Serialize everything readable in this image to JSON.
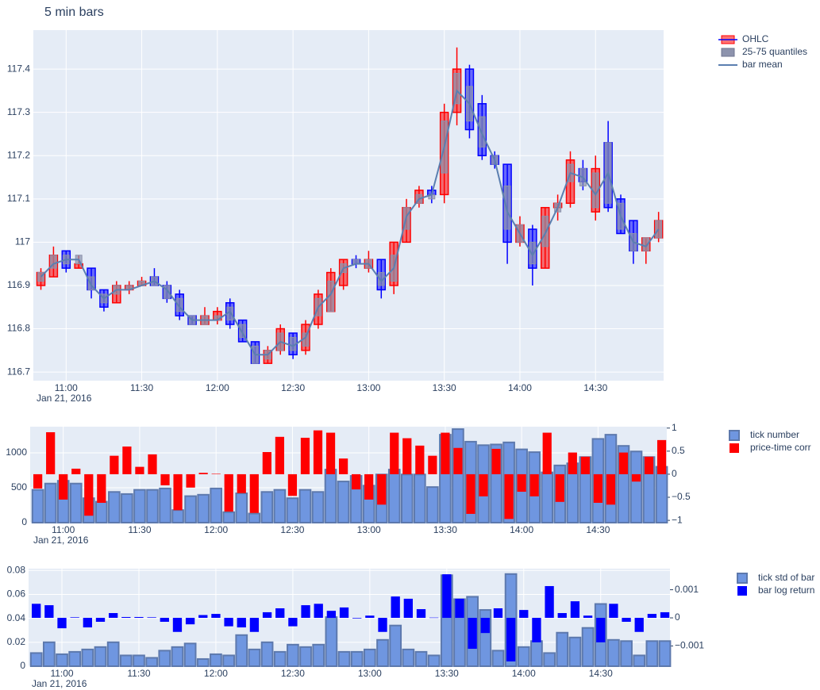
{
  "chart_data": [
    {
      "type": "candlestick",
      "title": "5 min bars",
      "x": [
        "10:50",
        "10:55",
        "11:00",
        "11:05",
        "11:10",
        "11:15",
        "11:20",
        "11:25",
        "11:30",
        "11:35",
        "11:40",
        "11:45",
        "11:50",
        "11:55",
        "12:00",
        "12:05",
        "12:10",
        "12:15",
        "12:20",
        "12:25",
        "12:30",
        "12:35",
        "12:40",
        "12:45",
        "12:50",
        "12:55",
        "13:00",
        "13:05",
        "13:10",
        "13:15",
        "13:20",
        "13:25",
        "13:30",
        "13:35",
        "13:40",
        "13:45",
        "13:50",
        "13:55",
        "14:00",
        "14:05",
        "14:10",
        "14:15",
        "14:20",
        "14:25",
        "14:30",
        "14:35",
        "14:40",
        "14:45",
        "14:50",
        "14:55"
      ],
      "x_date": "Jan 21, 2016",
      "xlim": [
        "10:47",
        "14:57"
      ],
      "xticks": [
        "11:00",
        "11:30",
        "12:00",
        "12:30",
        "13:00",
        "13:30",
        "14:00",
        "14:30"
      ],
      "ylim": [
        116.68,
        117.49
      ],
      "yticks": [
        116.7,
        116.8,
        116.9,
        117,
        117.1,
        117.2,
        117.3,
        117.4
      ],
      "grid": true,
      "series": [
        {
          "name": "OHLC",
          "increasing_color": "#ff0000",
          "decreasing_color": "#0000ff",
          "open": [
            116.9,
            116.92,
            116.98,
            116.94,
            116.94,
            116.89,
            116.86,
            116.89,
            116.9,
            116.92,
            116.9,
            116.88,
            116.83,
            116.81,
            116.82,
            116.86,
            116.82,
            116.77,
            116.72,
            116.75,
            116.79,
            116.75,
            116.81,
            116.84,
            116.9,
            116.96,
            116.94,
            116.96,
            116.9,
            117.0,
            117.09,
            117.12,
            117.11,
            117.3,
            117.4,
            117.32,
            117.2,
            117.18,
            117.0,
            117.03,
            116.94,
            117.08,
            117.09,
            117.17,
            117.07,
            117.23,
            117.1,
            117.05,
            116.98,
            117.01
          ],
          "high": [
            116.94,
            116.99,
            116.98,
            116.97,
            116.94,
            116.89,
            116.91,
            116.91,
            116.92,
            116.94,
            116.91,
            116.89,
            116.83,
            116.85,
            116.85,
            116.87,
            116.82,
            116.77,
            116.76,
            116.81,
            116.79,
            116.82,
            116.89,
            116.94,
            116.96,
            116.97,
            116.98,
            116.96,
            117.0,
            117.1,
            117.13,
            117.13,
            117.32,
            117.45,
            117.41,
            117.34,
            117.21,
            117.18,
            117.06,
            117.04,
            117.08,
            117.11,
            117.21,
            117.19,
            117.2,
            117.28,
            117.11,
            117.05,
            117.01,
            117.07
          ],
          "low": [
            116.89,
            116.92,
            116.93,
            116.94,
            116.87,
            116.84,
            116.86,
            116.88,
            116.9,
            116.9,
            116.86,
            116.82,
            116.81,
            116.81,
            116.81,
            116.8,
            116.77,
            116.72,
            116.72,
            116.74,
            116.73,
            116.74,
            116.8,
            116.84,
            116.89,
            116.94,
            116.93,
            116.87,
            116.88,
            117.0,
            117.08,
            117.09,
            117.09,
            117.27,
            117.24,
            117.19,
            117.17,
            116.95,
            116.99,
            116.9,
            116.94,
            117.05,
            117.08,
            117.12,
            117.05,
            117.07,
            117.02,
            116.95,
            116.95,
            117.0
          ],
          "close": [
            116.93,
            116.97,
            116.94,
            116.95,
            116.89,
            116.85,
            116.9,
            116.9,
            116.91,
            116.9,
            116.87,
            116.83,
            116.81,
            116.83,
            116.84,
            116.81,
            116.77,
            116.72,
            116.75,
            116.8,
            116.74,
            116.81,
            116.88,
            116.93,
            116.96,
            116.95,
            116.96,
            116.89,
            117.0,
            117.08,
            117.12,
            117.11,
            117.3,
            117.4,
            117.26,
            117.2,
            117.18,
            117.0,
            117.04,
            116.94,
            117.08,
            117.09,
            117.19,
            117.14,
            117.17,
            117.08,
            117.02,
            116.98,
            117.01,
            117.05
          ]
        },
        {
          "name": "25-75 quantiles",
          "color": "#8d93ad",
          "low": [
            116.91,
            116.94,
            116.95,
            116.95,
            116.89,
            116.86,
            116.88,
            116.89,
            116.9,
            116.9,
            116.87,
            116.84,
            116.81,
            116.81,
            116.82,
            116.82,
            116.78,
            116.72,
            116.73,
            116.75,
            116.75,
            116.76,
            116.83,
            116.84,
            116.93,
            116.95,
            116.94,
            116.9,
            116.91,
            117.03,
            117.09,
            117.1,
            117.16,
            117.32,
            117.28,
            117.22,
            117.18,
            117.03,
            117.0,
            116.95,
            116.99,
            117.07,
            117.14,
            117.13,
            117.08,
            117.09,
            117.03,
            116.98,
            116.98,
            117.01
          ],
          "high": [
            116.93,
            116.97,
            116.97,
            116.97,
            116.92,
            116.88,
            116.9,
            116.9,
            116.91,
            116.92,
            116.9,
            116.87,
            116.83,
            116.83,
            116.83,
            116.85,
            116.81,
            116.76,
            116.75,
            116.79,
            116.78,
            116.79,
            116.87,
            116.91,
            116.95,
            116.96,
            116.96,
            116.93,
            116.97,
            117.08,
            117.11,
            117.11,
            117.28,
            117.39,
            117.36,
            117.29,
            117.2,
            117.13,
            117.04,
            117.0,
            117.06,
            117.09,
            117.18,
            117.17,
            117.16,
            117.23,
            117.09,
            117.02,
            117.01,
            117.05
          ]
        },
        {
          "name": "bar mean",
          "color": "#5b7fb0",
          "values": [
            116.92,
            116.95,
            116.96,
            116.96,
            116.9,
            116.87,
            116.89,
            116.89,
            116.9,
            116.91,
            116.89,
            116.85,
            116.82,
            116.82,
            116.82,
            116.84,
            116.79,
            116.74,
            116.74,
            116.77,
            116.76,
            116.78,
            116.85,
            116.88,
            116.94,
            116.95,
            116.95,
            116.91,
            116.94,
            117.06,
            117.1,
            117.11,
            117.22,
            117.35,
            117.32,
            117.25,
            117.19,
            117.07,
            117.02,
            116.97,
            117.02,
            117.08,
            117.16,
            117.15,
            117.11,
            117.16,
            117.06,
            117.0,
            116.99,
            117.03
          ]
        }
      ]
    },
    {
      "type": "bar",
      "x": [
        "10:50",
        "10:55",
        "11:00",
        "11:05",
        "11:10",
        "11:15",
        "11:20",
        "11:25",
        "11:30",
        "11:35",
        "11:40",
        "11:45",
        "11:50",
        "11:55",
        "12:00",
        "12:05",
        "12:10",
        "12:15",
        "12:20",
        "12:25",
        "12:30",
        "12:35",
        "12:40",
        "12:45",
        "12:50",
        "12:55",
        "13:00",
        "13:05",
        "13:10",
        "13:15",
        "13:20",
        "13:25",
        "13:30",
        "13:35",
        "13:40",
        "13:45",
        "13:50",
        "13:55",
        "14:00",
        "14:05",
        "14:10",
        "14:15",
        "14:20",
        "14:25",
        "14:30",
        "14:35",
        "14:40",
        "14:45",
        "14:50",
        "14:55"
      ],
      "x_date": "Jan 21, 2016",
      "xlim": [
        "10:47",
        "14:57"
      ],
      "xticks": [
        "11:00",
        "11:30",
        "12:00",
        "12:30",
        "13:00",
        "13:30",
        "14:00",
        "14:30"
      ],
      "ylim": [
        0,
        1375
      ],
      "yticks": [
        0,
        500,
        1000
      ],
      "y2lim": [
        -1.05,
        1.03
      ],
      "y2ticks": [
        {
          "value": -1,
          "label": "−1"
        },
        {
          "value": -0.5,
          "label": "−0.5"
        },
        0,
        0.5,
        1
      ],
      "grid": true,
      "series": [
        {
          "name": "tick number",
          "color": "#6f96e0",
          "values": [
            470,
            560,
            600,
            560,
            350,
            300,
            440,
            410,
            470,
            470,
            490,
            180,
            380,
            400,
            490,
            150,
            420,
            130,
            440,
            470,
            350,
            470,
            440,
            760,
            590,
            670,
            530,
            690,
            760,
            690,
            690,
            510,
            1260,
            1340,
            1160,
            1110,
            1120,
            1150,
            1050,
            1010,
            720,
            820,
            850,
            940,
            1200,
            1260,
            1100,
            1020,
            940,
            800
          ]
        },
        {
          "name": "price-time corr",
          "color": "#ff0000",
          "axis": "y2",
          "values": [
            -0.31,
            0.91,
            -0.55,
            0.12,
            -0.9,
            -0.62,
            0.4,
            0.6,
            0.16,
            0.43,
            -0.24,
            -0.78,
            -0.29,
            0.03,
            0.01,
            -0.81,
            -0.41,
            -0.84,
            0.48,
            0.81,
            -0.47,
            0.79,
            0.95,
            0.9,
            0.34,
            -0.33,
            -0.55,
            -0.66,
            0.9,
            0.78,
            0.62,
            0.4,
            0.9,
            0.57,
            -0.86,
            -0.48,
            0.55,
            -0.97,
            -0.38,
            -0.48,
            0.9,
            -0.6,
            0.47,
            0.38,
            -0.62,
            -0.66,
            0.47,
            -0.16,
            0.38,
            0.74
          ]
        }
      ]
    },
    {
      "type": "bar",
      "x": [
        "10:50",
        "10:55",
        "11:00",
        "11:05",
        "11:10",
        "11:15",
        "11:20",
        "11:25",
        "11:30",
        "11:35",
        "11:40",
        "11:45",
        "11:50",
        "11:55",
        "12:00",
        "12:05",
        "12:10",
        "12:15",
        "12:20",
        "12:25",
        "12:30",
        "12:35",
        "12:40",
        "12:45",
        "12:50",
        "12:55",
        "13:00",
        "13:05",
        "13:10",
        "13:15",
        "13:20",
        "13:25",
        "13:30",
        "13:35",
        "13:40",
        "13:45",
        "13:50",
        "13:55",
        "14:00",
        "14:05",
        "14:10",
        "14:15",
        "14:20",
        "14:25",
        "14:30",
        "14:35",
        "14:40",
        "14:45",
        "14:50",
        "14:55"
      ],
      "x_date": "Jan 21, 2016",
      "xlim": [
        "10:47",
        "14:57"
      ],
      "xticks": [
        "11:00",
        "11:30",
        "12:00",
        "12:30",
        "13:00",
        "13:30",
        "14:00",
        "14:30"
      ],
      "ylim": [
        0,
        0.0815
      ],
      "yticks": [
        0,
        0.02,
        0.04,
        0.06,
        0.08
      ],
      "y2lim": [
        -0.00172,
        0.00175
      ],
      "y2ticks": [
        {
          "value": -0.001,
          "label": "−0.001"
        },
        0,
        0.001
      ],
      "grid": true,
      "series": [
        {
          "name": "tick std of bar",
          "color": "#6f96e0",
          "values": [
            0.011,
            0.02,
            0.01,
            0.012,
            0.014,
            0.016,
            0.02,
            0.009,
            0.009,
            0.007,
            0.013,
            0.016,
            0.019,
            0.006,
            0.01,
            0.009,
            0.026,
            0.014,
            0.02,
            0.012,
            0.018,
            0.016,
            0.018,
            0.041,
            0.012,
            0.012,
            0.014,
            0.022,
            0.034,
            0.014,
            0.012,
            0.009,
            0.076,
            0.056,
            0.058,
            0.047,
            0.013,
            0.077,
            0.016,
            0.021,
            0.011,
            0.028,
            0.024,
            0.032,
            0.052,
            0.022,
            0.021,
            0.009,
            0.021,
            0.021
          ]
        },
        {
          "name": "bar log return",
          "color": "#0000ff",
          "axis": "y2",
          "values": [
            0.0005,
            0.00045,
            -0.00037,
            2e-05,
            -0.00034,
            -0.00014,
            0.00017,
            3e-05,
            3e-05,
            2e-05,
            -0.00014,
            -0.0005,
            -0.00023,
            0.0001,
            0.00014,
            -0.0003,
            -0.00034,
            -0.0005,
            0.0002,
            0.00034,
            -0.0003,
            0.00045,
            0.0005,
            0.00025,
            0.00037,
            -2e-05,
            8e-05,
            -0.0005,
            0.00076,
            0.00068,
            0.00031,
            1e-05,
            0.00155,
            0.00068,
            -0.0011,
            -0.00054,
            0.00034,
            -0.00155,
            0.00028,
            -0.00087,
            0.00113,
            0.00017,
            0.00059,
            8e-05,
            -0.00087,
            0.0005,
            -0.00014,
            -0.0005,
            0.00014,
            0.0002
          ]
        }
      ]
    }
  ]
}
